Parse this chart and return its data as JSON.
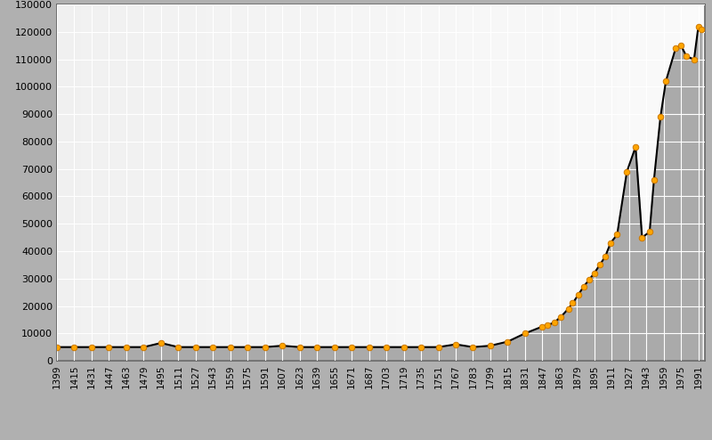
{
  "years": [
    1399,
    1415,
    1431,
    1447,
    1463,
    1479,
    1495,
    1511,
    1527,
    1543,
    1559,
    1575,
    1591,
    1607,
    1623,
    1639,
    1655,
    1671,
    1687,
    1703,
    1719,
    1735,
    1751,
    1767,
    1783,
    1799,
    1815,
    1831,
    1847,
    1852,
    1858,
    1864,
    1871,
    1875,
    1880,
    1885,
    1890,
    1895,
    1900,
    1905,
    1910,
    1916,
    1925,
    1933,
    1939,
    1946,
    1950,
    1956,
    1961,
    1970,
    1975,
    1980,
    1987,
    1991,
    1994
  ],
  "population": [
    5000,
    5000,
    5000,
    5000,
    5000,
    5000,
    6500,
    5000,
    5000,
    5000,
    5000,
    5000,
    5000,
    5500,
    5000,
    5000,
    5000,
    5000,
    5000,
    5000,
    5000,
    5000,
    5000,
    6000,
    5000,
    5500,
    7000,
    10000,
    12500,
    13000,
    14000,
    16000,
    19000,
    21000,
    24000,
    27000,
    29500,
    32000,
    35000,
    38000,
    43000,
    46000,
    69000,
    78000,
    45000,
    47000,
    66000,
    89000,
    102000,
    114000,
    115000,
    111000,
    110000,
    122000,
    121000
  ],
  "line_color": "#000000",
  "fill_color": "#aaaaaa",
  "marker_color": "#FFA500",
  "marker_edge_color": "#cc7700",
  "grid_color": "#ffffff",
  "yticks": [
    0,
    10000,
    20000,
    30000,
    40000,
    50000,
    60000,
    70000,
    80000,
    90000,
    100000,
    110000,
    120000,
    130000
  ],
  "ylim": [
    0,
    130000
  ],
  "xlim_start": 1399,
  "xlim_end": 1997
}
